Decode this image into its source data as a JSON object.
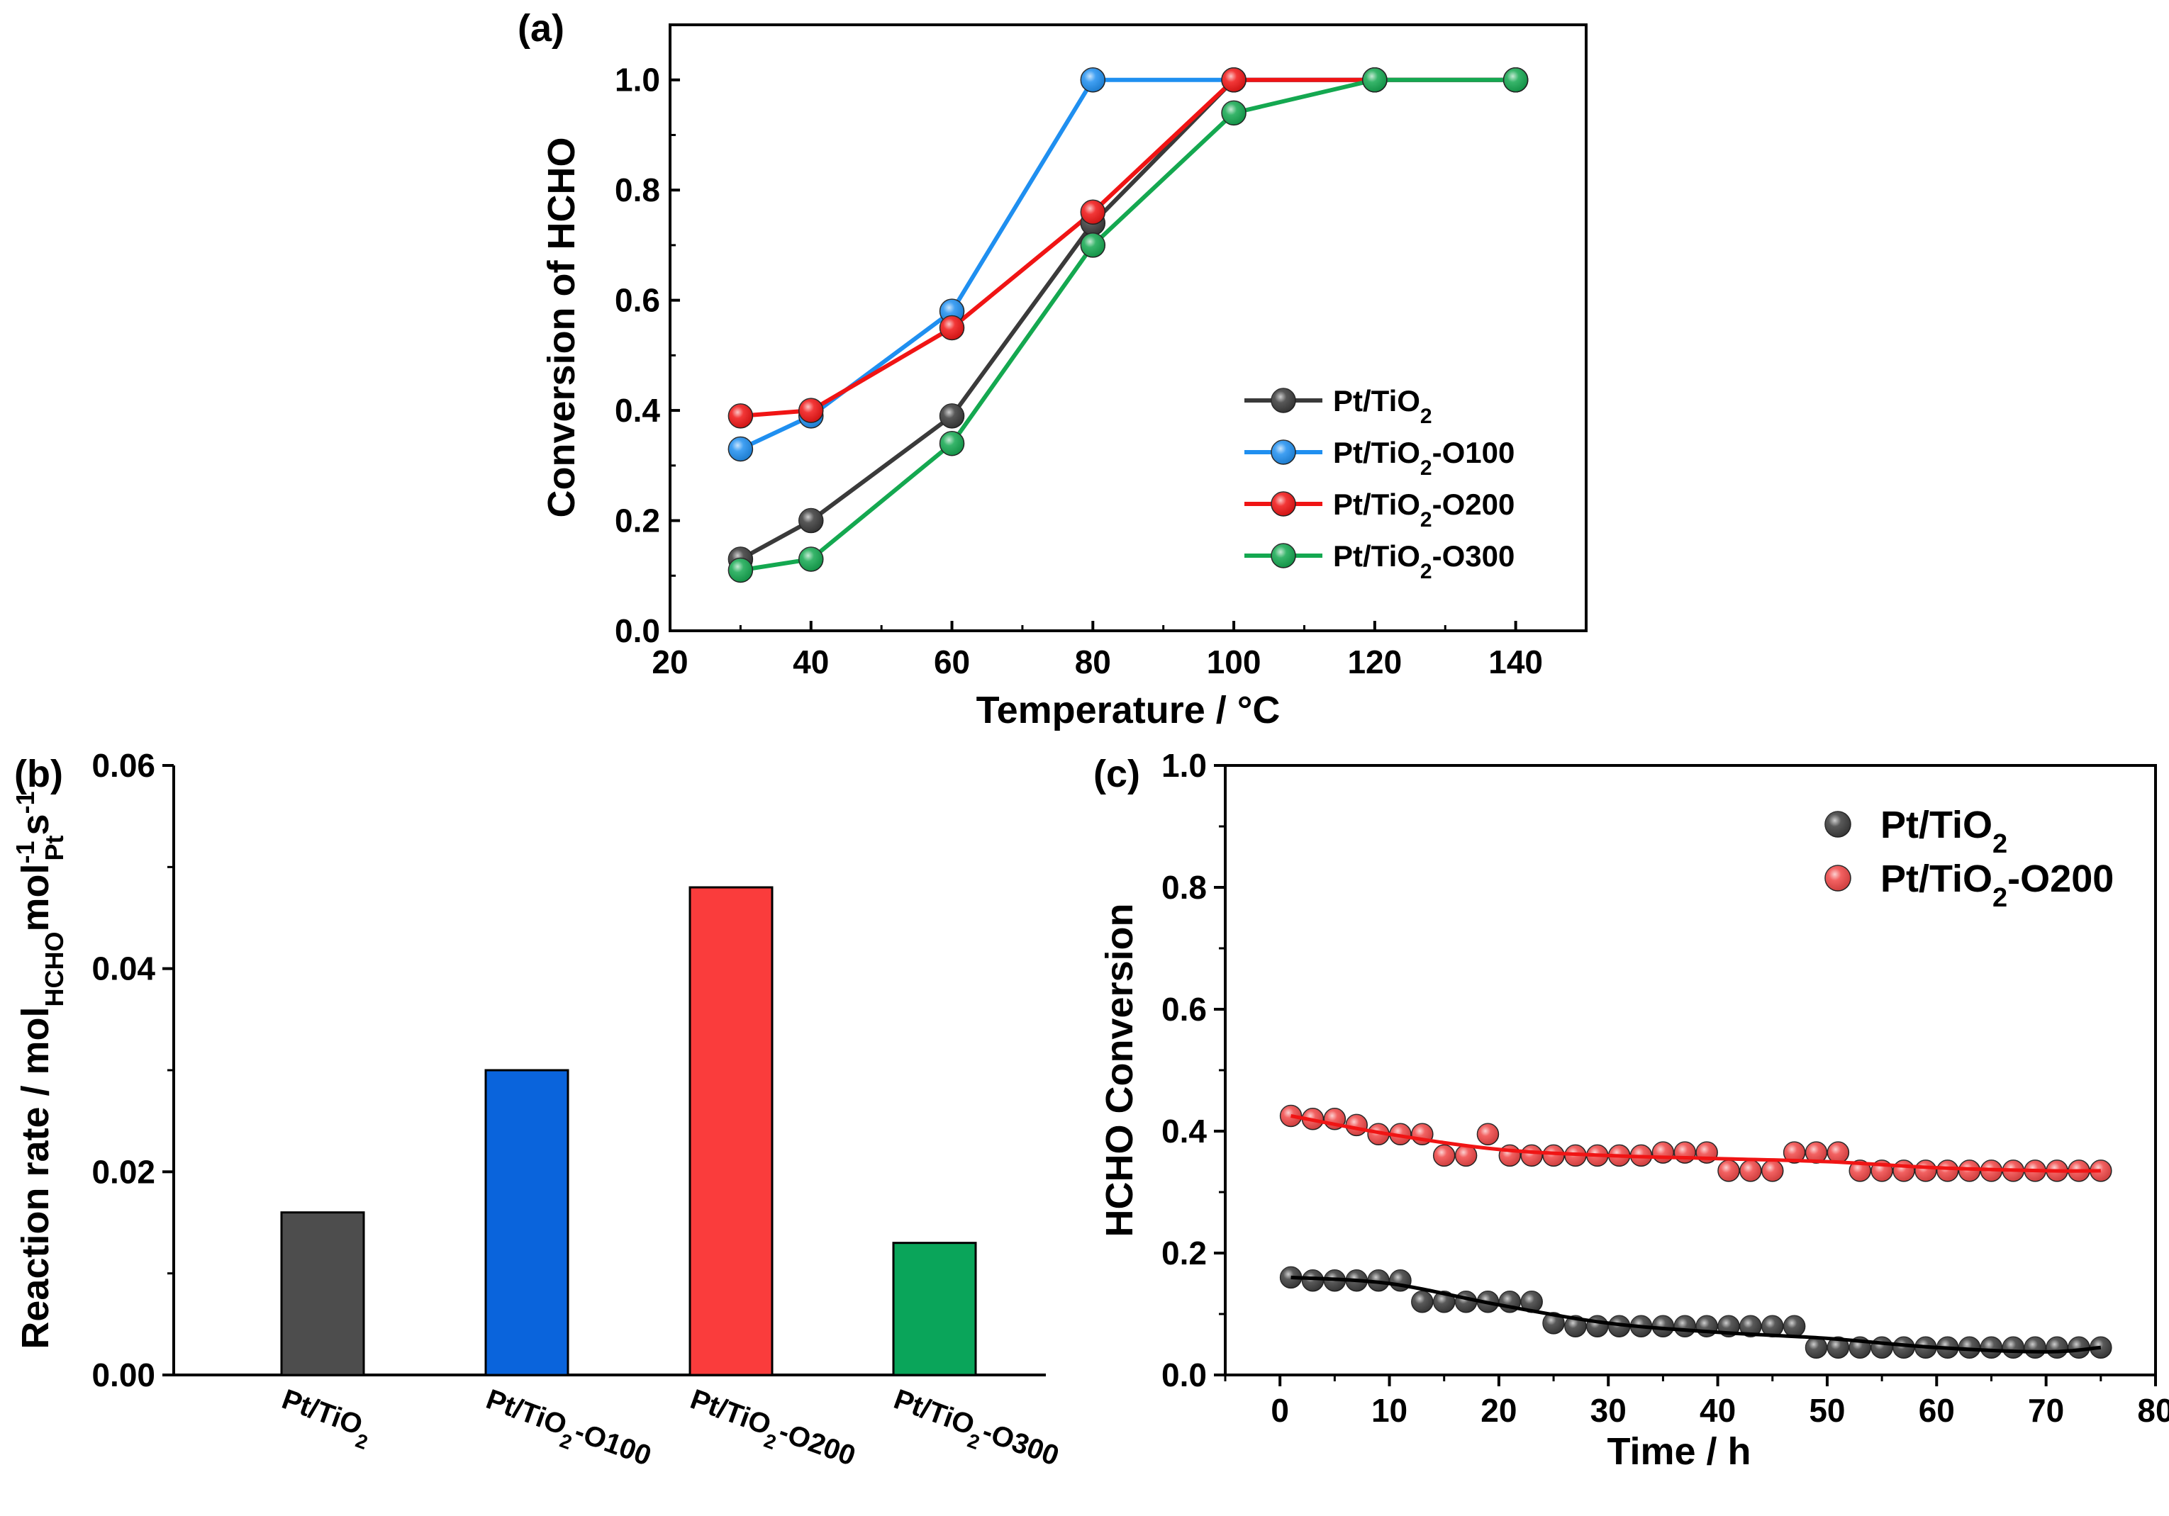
{
  "chart_data": [
    {
      "panel_label": "(a)",
      "type": "line",
      "xlabel": "Temperature / °C",
      "ylabel": "Conversion of HCHO",
      "xlim": [
        20,
        150
      ],
      "ylim": [
        0.0,
        1.1
      ],
      "xticks": [
        20,
        40,
        60,
        80,
        100,
        120,
        140
      ],
      "yticks": [
        0.0,
        0.2,
        0.4,
        0.6,
        0.8,
        1.0
      ],
      "legend_position": "center-right",
      "series": [
        {
          "name": "Pt/TiO2",
          "sub": "2",
          "suffix": "",
          "color": "#3a3a3a",
          "x": [
            30,
            40,
            60,
            80,
            100,
            120,
            140
          ],
          "y": [
            0.13,
            0.2,
            0.39,
            0.74,
            1.0,
            1.0,
            1.0
          ]
        },
        {
          "name": "Pt/TiO2-O100",
          "sub": "2",
          "suffix": "-O100",
          "color": "#1f8ff0",
          "x": [
            30,
            40,
            60,
            80,
            100,
            120,
            140
          ],
          "y": [
            0.33,
            0.39,
            0.58,
            1.0,
            1.0,
            1.0,
            1.0
          ]
        },
        {
          "name": "Pt/TiO2-O200",
          "sub": "2",
          "suffix": "-O200",
          "color": "#f01414",
          "x": [
            30,
            40,
            60,
            80,
            100,
            120,
            140
          ],
          "y": [
            0.39,
            0.4,
            0.55,
            0.76,
            1.0,
            1.0,
            1.0
          ]
        },
        {
          "name": "Pt/TiO2-O300",
          "sub": "2",
          "suffix": "-O300",
          "color": "#14a850",
          "x": [
            30,
            40,
            60,
            80,
            100,
            120,
            140
          ],
          "y": [
            0.11,
            0.13,
            0.34,
            0.7,
            0.94,
            1.0,
            1.0
          ]
        }
      ]
    },
    {
      "panel_label": "(b)",
      "type": "bar",
      "ylabel": "Reaction rate / mol",
      "ylabel_sub1": "HCHO",
      "ylabel_mid": "mol",
      "ylabel_sup1": "-1",
      "ylabel_sub2": "Pt",
      "ylabel_end": "s",
      "ylabel_sup2": "-1",
      "ylim": [
        0.0,
        0.06
      ],
      "yticks": [
        0.0,
        0.02,
        0.04,
        0.06
      ],
      "categories": [
        "Pt/TiO2",
        "Pt/TiO2-O100",
        "Pt/TiO2-O200",
        "Pt/TiO2-O300"
      ],
      "category_parts": [
        {
          "main": "Pt/TiO",
          "sub": "2",
          "suffix": ""
        },
        {
          "main": "Pt/TiO",
          "sub": "2",
          "suffix": "-O100"
        },
        {
          "main": "Pt/TiO",
          "sub": "2",
          "suffix": "-O200"
        },
        {
          "main": "Pt/TiO",
          "sub": "2",
          "suffix": "-O300"
        }
      ],
      "values": [
        0.016,
        0.03,
        0.048,
        0.013
      ],
      "colors": [
        "#4d4d4d",
        "#0a64dc",
        "#fa3c3c",
        "#0aa55a"
      ]
    },
    {
      "panel_label": "(c)",
      "type": "scatter",
      "xlabel": "Time / h",
      "ylabel": "HCHO Conversion",
      "xlim": [
        -5,
        80
      ],
      "ylim": [
        0.0,
        1.0
      ],
      "xticks": [
        0,
        10,
        20,
        30,
        40,
        50,
        60,
        70,
        80
      ],
      "yticks": [
        0.0,
        0.2,
        0.4,
        0.6,
        0.8,
        1.0
      ],
      "legend_position": "top-right",
      "series": [
        {
          "name": "Pt/TiO2",
          "sub": "2",
          "suffix": "",
          "color": "#3c3c3c",
          "fit_color": "#000000",
          "x": [
            1,
            3,
            5,
            7,
            9,
            11,
            13,
            15,
            17,
            19,
            21,
            23,
            25,
            27,
            29,
            31,
            33,
            35,
            37,
            39,
            41,
            43,
            45,
            47,
            49,
            51,
            53,
            55,
            57,
            59,
            61,
            63,
            65,
            67,
            69,
            71,
            73,
            75
          ],
          "y": [
            0.16,
            0.155,
            0.155,
            0.155,
            0.155,
            0.155,
            0.12,
            0.12,
            0.12,
            0.12,
            0.12,
            0.12,
            0.085,
            0.08,
            0.08,
            0.08,
            0.08,
            0.08,
            0.08,
            0.08,
            0.08,
            0.08,
            0.08,
            0.08,
            0.045,
            0.045,
            0.045,
            0.045,
            0.045,
            0.045,
            0.045,
            0.045,
            0.045,
            0.045,
            0.045,
            0.045,
            0.045,
            0.045
          ],
          "fit_x": [
            1,
            10,
            20,
            30,
            40,
            50,
            60,
            70,
            75
          ],
          "fit_y": [
            0.16,
            0.15,
            0.115,
            0.085,
            0.07,
            0.06,
            0.045,
            0.038,
            0.045
          ]
        },
        {
          "name": "Pt/TiO2-O200",
          "sub": "2",
          "suffix": "-O200",
          "color": "#f04646",
          "fit_color": "#f01414",
          "x": [
            1,
            3,
            5,
            7,
            9,
            11,
            13,
            15,
            17,
            19,
            21,
            23,
            25,
            27,
            29,
            31,
            33,
            35,
            37,
            39,
            41,
            43,
            45,
            47,
            49,
            51,
            53,
            55,
            57,
            59,
            61,
            63,
            65,
            67,
            69,
            71,
            73,
            75
          ],
          "y": [
            0.425,
            0.42,
            0.42,
            0.41,
            0.395,
            0.395,
            0.395,
            0.36,
            0.36,
            0.395,
            0.36,
            0.36,
            0.36,
            0.36,
            0.36,
            0.36,
            0.36,
            0.365,
            0.365,
            0.365,
            0.335,
            0.335,
            0.335,
            0.365,
            0.365,
            0.365,
            0.335,
            0.335,
            0.335,
            0.335,
            0.335,
            0.335,
            0.335,
            0.335,
            0.335,
            0.335,
            0.335,
            0.335
          ],
          "fit_x": [
            1,
            10,
            20,
            30,
            40,
            50,
            60,
            70,
            75
          ],
          "fit_y": [
            0.425,
            0.395,
            0.37,
            0.36,
            0.355,
            0.35,
            0.34,
            0.335,
            0.335
          ]
        }
      ]
    }
  ]
}
